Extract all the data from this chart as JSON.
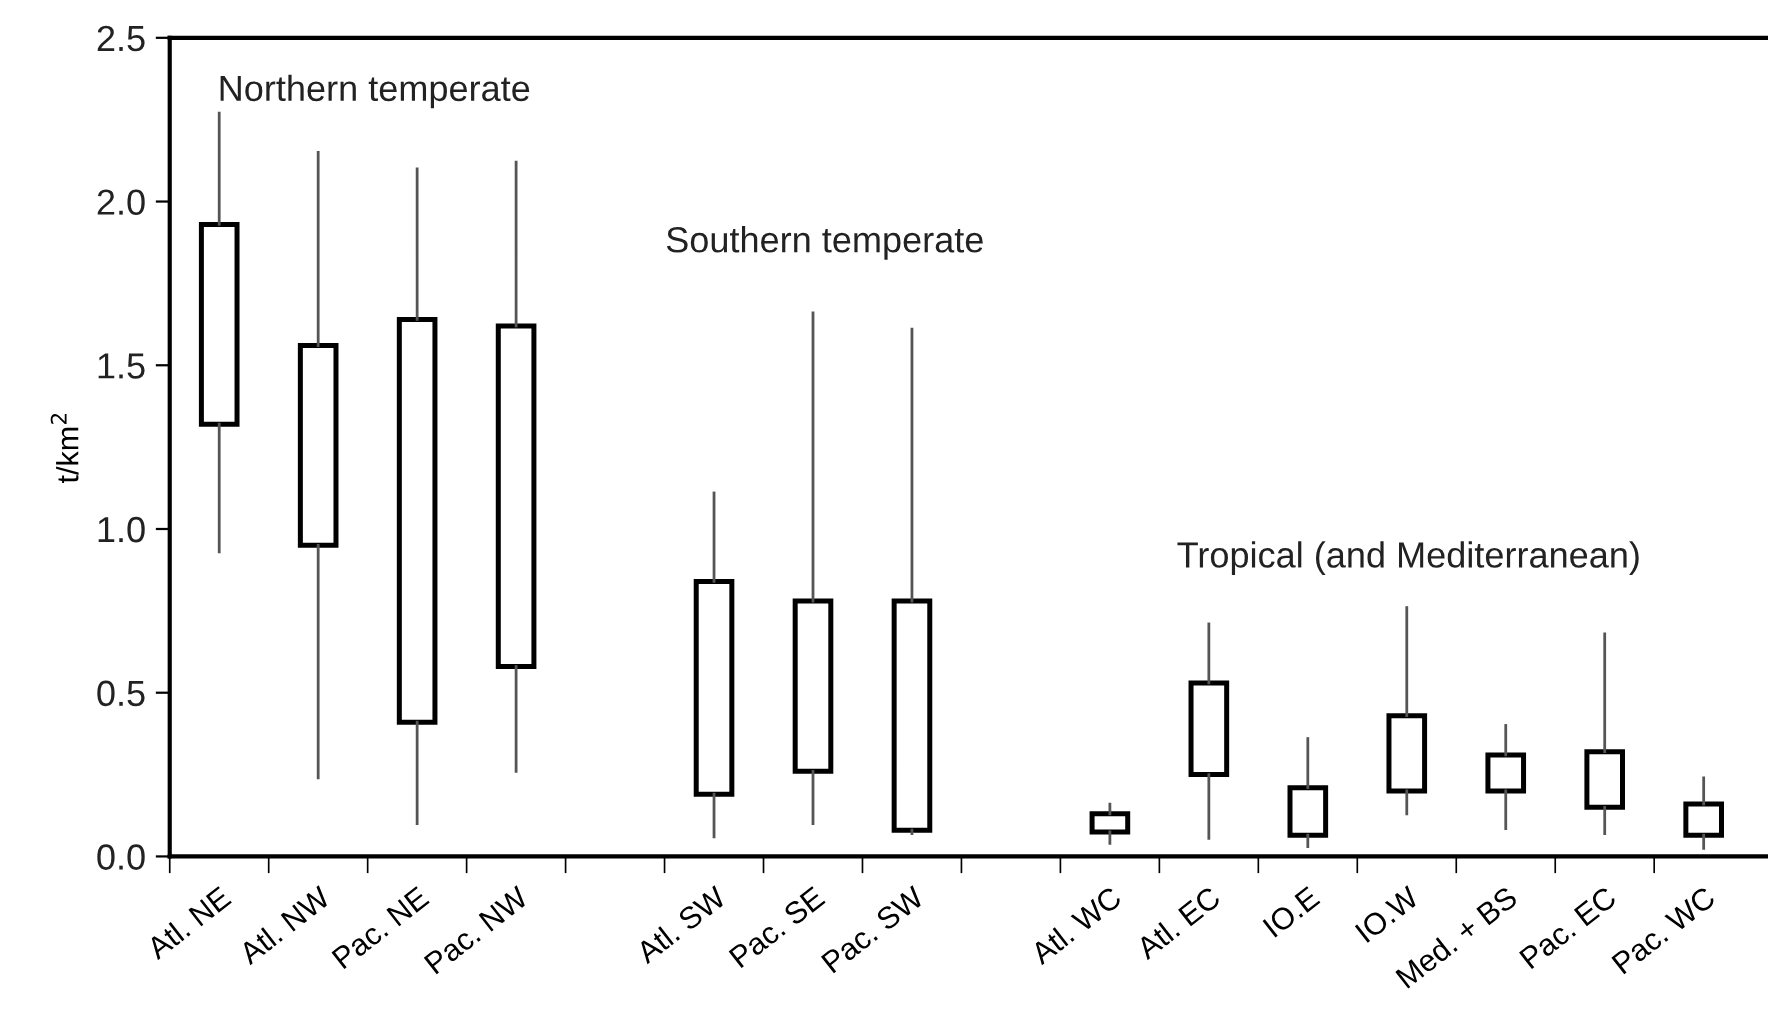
{
  "chart_data": {
    "type": "box",
    "ylabel": "t/km$^{2}$",
    "categories": [
      "Atl. NE",
      "Atl. NW",
      "Pac. NE",
      "Pac. NW",
      null,
      "Atl. SW",
      "Pac. SE",
      "Pac. SW",
      null,
      "Atl. WC",
      "Atl. EC",
      "IO.E",
      "IO.W",
      "Med. + BS",
      "Pac. EC",
      "Pac. WC"
    ],
    "boxes": [
      {
        "low": 0.93,
        "q1": 1.32,
        "q3": 1.93,
        "high": 2.27
      },
      {
        "low": 0.24,
        "q1": 0.95,
        "q3": 1.56,
        "high": 2.15
      },
      {
        "low": 0.1,
        "q1": 0.41,
        "q3": 1.64,
        "high": 2.1
      },
      {
        "low": 0.26,
        "q1": 0.58,
        "q3": 1.62,
        "high": 2.12
      },
      null,
      {
        "low": 0.06,
        "q1": 0.19,
        "q3": 0.84,
        "high": 1.11
      },
      {
        "low": 0.1,
        "q1": 0.26,
        "q3": 0.78,
        "high": 1.66
      },
      {
        "low": 0.07,
        "q1": 0.08,
        "q3": 0.78,
        "high": 1.61
      },
      null,
      {
        "low": 0.04,
        "q1": 0.075,
        "q3": 0.13,
        "high": 0.16
      },
      {
        "low": 0.055,
        "q1": 0.25,
        "q3": 0.53,
        "high": 0.71
      },
      {
        "low": 0.03,
        "q1": 0.065,
        "q3": 0.21,
        "high": 0.36
      },
      {
        "low": 0.13,
        "q1": 0.2,
        "q3": 0.43,
        "high": 0.76
      },
      {
        "low": 0.085,
        "q1": 0.2,
        "q3": 0.31,
        "high": 0.4
      },
      {
        "low": 0.07,
        "q1": 0.15,
        "q3": 0.32,
        "high": 0.68
      },
      {
        "low": 0.025,
        "q1": 0.065,
        "q3": 0.16,
        "high": 0.24
      }
    ],
    "annotations": [
      "Northern temperate",
      "Southern temperate",
      "Tropical (and Mediterranean)"
    ],
    "ylim": [
      0,
      2.5
    ],
    "yticks": [
      {
        "value": 0,
        "label": "0.0"
      },
      {
        "value": 0.5,
        "label": "0.5"
      },
      {
        "value": 1,
        "label": "1.0"
      },
      {
        "value": 1.5,
        "label": "1.5"
      },
      {
        "value": 2,
        "label": "2.0"
      },
      {
        "value": 2.5,
        "label": "2.5"
      }
    ],
    "grid": false
  }
}
